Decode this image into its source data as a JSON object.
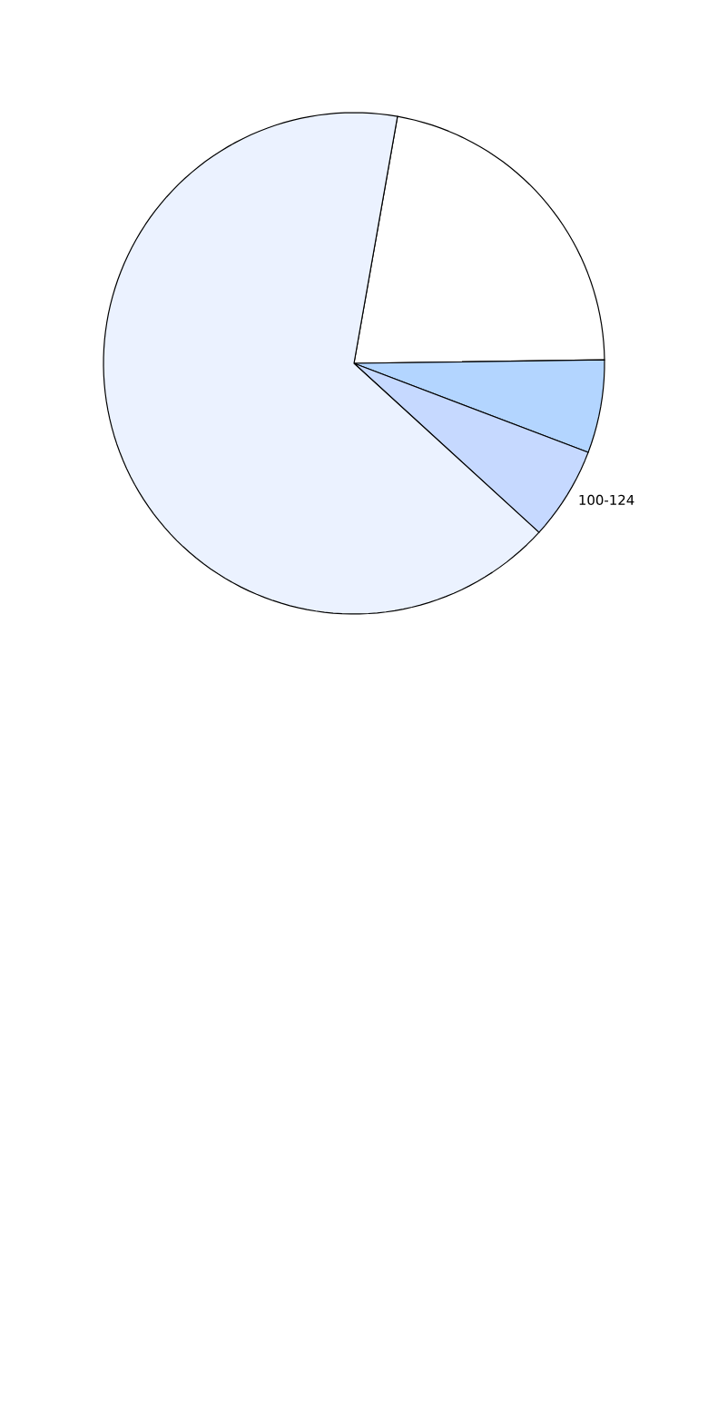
{
  "chart_data": {
    "type": "pie",
    "categories": [
      null,
      null,
      "100-124",
      null
    ],
    "values": [
      22,
      6,
      6,
      66
    ],
    "colors": [
      "#ffffff",
      "#b3d5ff",
      "#c6d9ff",
      "#ebf2ff"
    ]
  }
}
